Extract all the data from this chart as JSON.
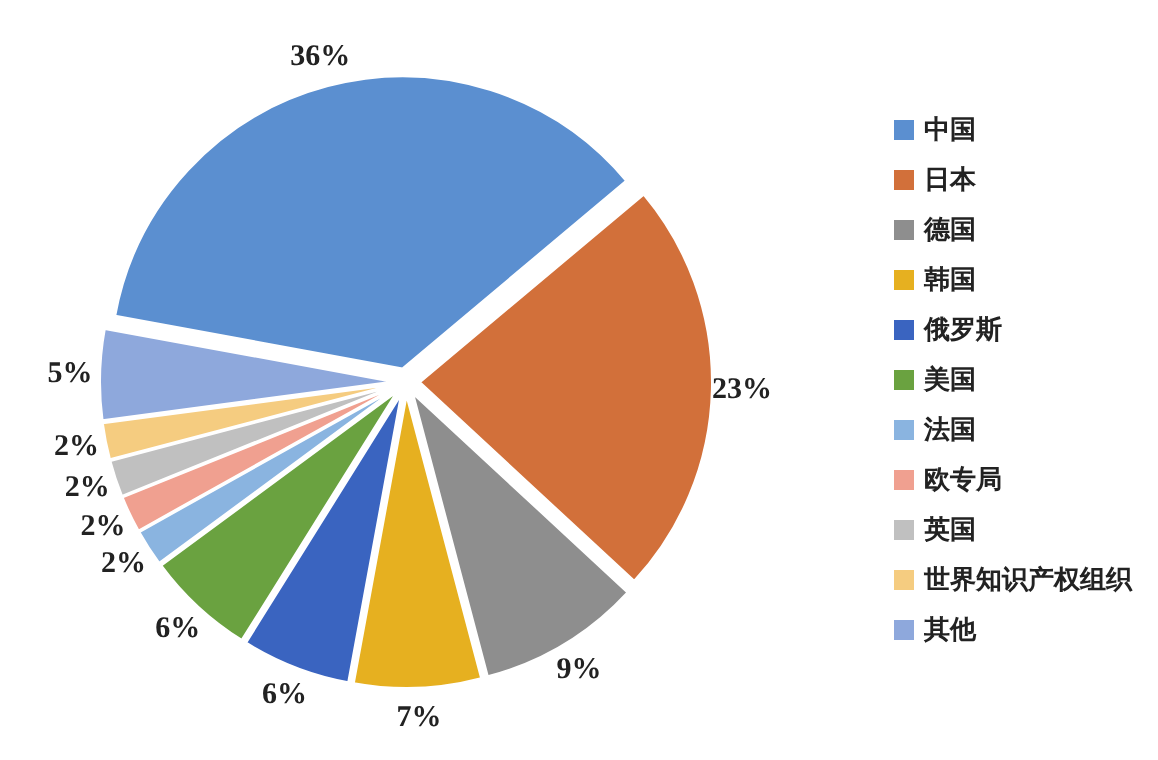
{
  "chart_data": {
    "type": "pie",
    "categories": [
      "中国",
      "日本",
      "德国",
      "韩国",
      "俄罗斯",
      "美国",
      "法国",
      "欧专局",
      "英国",
      "世界知识产权组织",
      "其他"
    ],
    "values": [
      36,
      23,
      9,
      7,
      6,
      6,
      2,
      2,
      2,
      2,
      5
    ],
    "value_labels": [
      "36%",
      "23%",
      "9%",
      "7%",
      "6%",
      "6%",
      "2%",
      "2%",
      "2%",
      "2%",
      "5%"
    ],
    "colors": [
      "#5b8fd0",
      "#d2703a",
      "#8e8e8e",
      "#e6b020",
      "#3a64c0",
      "#6aa240",
      "#8ab4e0",
      "#f0a090",
      "#c0c0c0",
      "#f5cc80",
      "#8ea8dc"
    ],
    "legend": "right"
  }
}
